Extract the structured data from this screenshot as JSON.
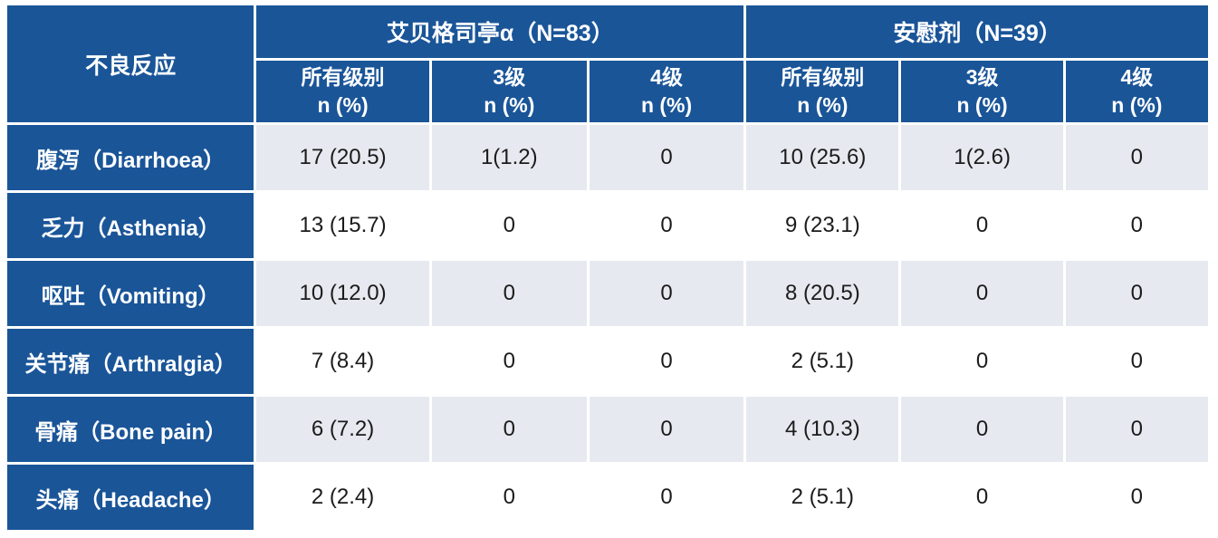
{
  "table": {
    "corner_header": "不良反应",
    "groups": [
      {
        "label": "艾贝格司亭α（N=83）",
        "subcols": [
          {
            "line1": "所有级别",
            "line2": "n (%)"
          },
          {
            "line1": "3级",
            "line2": "n (%)"
          },
          {
            "line1": "4级",
            "line2": "n (%)"
          }
        ]
      },
      {
        "label": "安慰剂（N=39）",
        "subcols": [
          {
            "line1": "所有级别",
            "line2": "n (%)"
          },
          {
            "line1": "3级",
            "line2": "n (%)"
          },
          {
            "line1": "4级",
            "line2": "n (%)"
          }
        ]
      }
    ],
    "rows": [
      {
        "label": "腹泻（Diarrhoea）",
        "values": [
          "17 (20.5)",
          "1(1.2)",
          "0",
          "10 (25.6)",
          "1(2.6)",
          "0"
        ]
      },
      {
        "label": "乏力（Asthenia）",
        "values": [
          "13 (15.7)",
          "0",
          "0",
          "9 (23.1)",
          "0",
          "0"
        ]
      },
      {
        "label": "呕吐（Vomiting）",
        "values": [
          "10 (12.0)",
          "0",
          "0",
          "8 (20.5)",
          "0",
          "0"
        ]
      },
      {
        "label": "关节痛（Arthralgia）",
        "values": [
          "7 (8.4)",
          "0",
          "0",
          "2 (5.1)",
          "0",
          "0"
        ]
      },
      {
        "label": "骨痛（Bone  pain）",
        "values": [
          "6 (7.2)",
          "0",
          "0",
          "4 (10.3)",
          "0",
          "0"
        ]
      },
      {
        "label": "头痛（Headache）",
        "values": [
          "2 (2.4)",
          "0",
          "0",
          "2 (5.1)",
          "0",
          "0"
        ]
      }
    ],
    "colors": {
      "header_blue": "#1a5598",
      "alt_row_gray": "#e7e9f0",
      "base_row_white": "#ffffff",
      "header_text": "#ffffff",
      "data_text": "#1b1b1b"
    }
  }
}
